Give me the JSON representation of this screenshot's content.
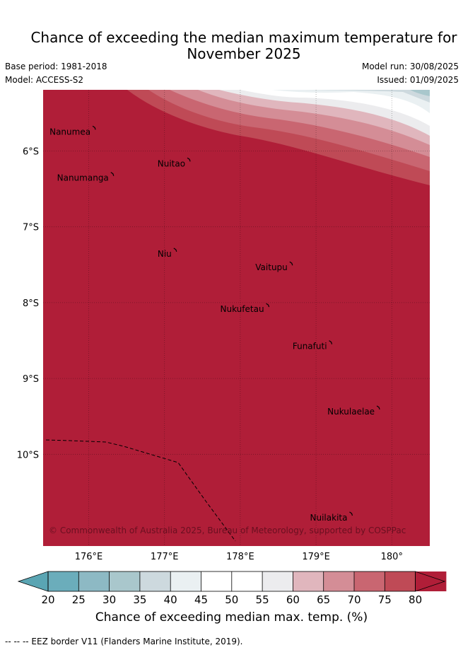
{
  "title_line1": "Chance of exceeding the median maximum temperature for",
  "title_line2": "November 2025",
  "base_period": "Base period: 1981-2018",
  "model": "Model: ACCESS-S2",
  "model_run": "Model run: 30/08/2025",
  "issued": "Issued: 01/09/2025",
  "copyright": "© Commonwealth of Australia 2025, Bureau of Meteorology, supported by COSPPac",
  "lat_ticks": [
    "6°S",
    "7°S",
    "8°S",
    "9°S",
    "10°S"
  ],
  "lon_ticks": [
    "176°E",
    "177°E",
    "178°E",
    "179°E",
    "180°"
  ],
  "islands": [
    {
      "name": "Nanumea",
      "lon": 176.08,
      "lat": -5.69
    },
    {
      "name": "Nuitao",
      "lon": 177.33,
      "lat": -6.11
    },
    {
      "name": "Nanumanga",
      "lon": 176.32,
      "lat": -6.3
    },
    {
      "name": "Niu",
      "lon": 177.15,
      "lat": -7.3
    },
    {
      "name": "Vaitupu",
      "lon": 178.68,
      "lat": -7.48
    },
    {
      "name": "Nukufetau",
      "lon": 178.37,
      "lat": -8.03
    },
    {
      "name": "Funafuti",
      "lon": 179.2,
      "lat": -8.52
    },
    {
      "name": "Nukulaelae",
      "lon": 179.83,
      "lat": -9.38
    },
    {
      "name": "Nuilakita",
      "lon": 179.47,
      "lat": -10.78
    }
  ],
  "colorbar": {
    "ticks": [
      "20",
      "25",
      "30",
      "35",
      "40",
      "45",
      "50",
      "55",
      "60",
      "65",
      "70",
      "75",
      "80"
    ],
    "colors": [
      "#6badbb",
      "#8db9c4",
      "#a9c7cc",
      "#cdd9de",
      "#eaf0f2",
      "#ffffff",
      "#ffffff",
      "#ececee",
      "#e0b6bd",
      "#d48d96",
      "#c96671",
      "#bf4a56",
      "#b01e38"
    ],
    "label": "Chance of exceeding median max. temp. (%)"
  },
  "legend_footnote": "--  --  -- EEZ border V11 (Flanders Marine Institute, 2019)."
}
